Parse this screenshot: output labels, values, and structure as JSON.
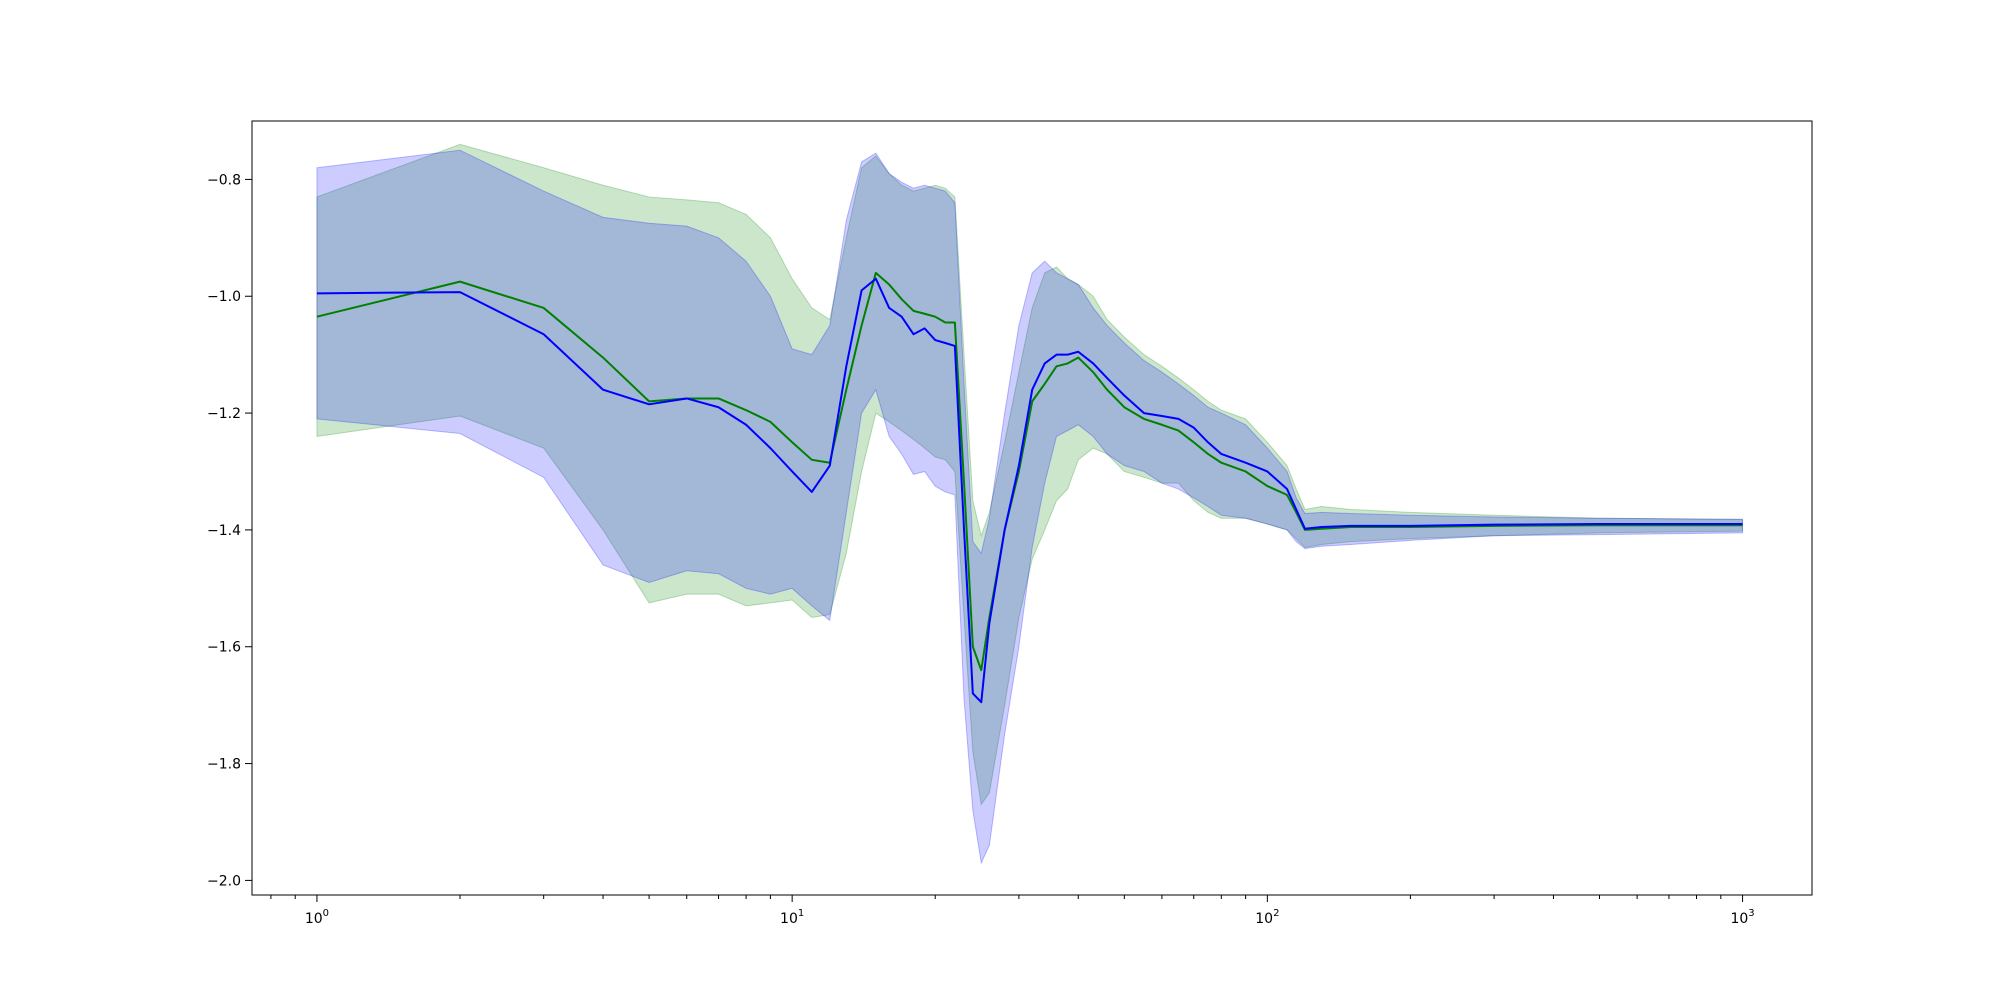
{
  "chart_data": {
    "type": "line",
    "title": "",
    "xlabel": "",
    "ylabel": "",
    "x_scale": "log",
    "xlim": [
      0.73,
      1400
    ],
    "ylim": [
      -2.025,
      -0.7
    ],
    "grid": false,
    "legend": "none",
    "x_ticks": [
      {
        "value": 1,
        "base": "10",
        "exp": "0"
      },
      {
        "value": 10,
        "base": "10",
        "exp": "1"
      },
      {
        "value": 100,
        "base": "10",
        "exp": "2"
      },
      {
        "value": 1000,
        "base": "10",
        "exp": "3"
      }
    ],
    "y_ticks": [
      {
        "value": -2.0,
        "label": "−2.0"
      },
      {
        "value": -1.8,
        "label": "−1.8"
      },
      {
        "value": -1.6,
        "label": "−1.6"
      },
      {
        "value": -1.4,
        "label": "−1.4"
      },
      {
        "value": -1.2,
        "label": "−1.2"
      },
      {
        "value": -1.0,
        "label": "−1.0"
      },
      {
        "value": -0.8,
        "label": "−0.8"
      }
    ],
    "series": [
      {
        "color": "#008000",
        "band_color": "#008000",
        "band_opacity": 0.2,
        "x": [
          1,
          2,
          3,
          4,
          5,
          6,
          7,
          8,
          9,
          10,
          11,
          12,
          13,
          14,
          15,
          16,
          17,
          18,
          19,
          20,
          21,
          22,
          23,
          24,
          25,
          26,
          28,
          30,
          32,
          34,
          36,
          38,
          40,
          43,
          46,
          50,
          55,
          60,
          65,
          70,
          75,
          80,
          90,
          100,
          110,
          115,
          120,
          130,
          150,
          200,
          300,
          500,
          1000
        ],
        "y": [
          -1.035,
          -0.975,
          -1.02,
          -1.105,
          -1.18,
          -1.175,
          -1.175,
          -1.195,
          -1.215,
          -1.25,
          -1.28,
          -1.285,
          -1.16,
          -1.05,
          -0.96,
          -0.98,
          -1.005,
          -1.025,
          -1.03,
          -1.035,
          -1.045,
          -1.045,
          -1.32,
          -1.6,
          -1.64,
          -1.55,
          -1.4,
          -1.3,
          -1.18,
          -1.15,
          -1.12,
          -1.115,
          -1.105,
          -1.13,
          -1.16,
          -1.19,
          -1.21,
          -1.22,
          -1.23,
          -1.25,
          -1.27,
          -1.285,
          -1.3,
          -1.325,
          -1.34,
          -1.37,
          -1.4,
          -1.398,
          -1.395,
          -1.395,
          -1.393,
          -1.392,
          -1.392
        ],
        "lower": [
          -1.24,
          -1.205,
          -1.26,
          -1.4,
          -1.525,
          -1.51,
          -1.51,
          -1.53,
          -1.525,
          -1.52,
          -1.55,
          -1.545,
          -1.44,
          -1.3,
          -1.2,
          -1.215,
          -1.23,
          -1.245,
          -1.26,
          -1.275,
          -1.28,
          -1.3,
          -1.55,
          -1.78,
          -1.87,
          -1.85,
          -1.7,
          -1.55,
          -1.45,
          -1.4,
          -1.35,
          -1.33,
          -1.28,
          -1.26,
          -1.27,
          -1.3,
          -1.31,
          -1.32,
          -1.32,
          -1.35,
          -1.37,
          -1.38,
          -1.38,
          -1.39,
          -1.4,
          -1.415,
          -1.43,
          -1.425,
          -1.42,
          -1.415,
          -1.41,
          -1.405,
          -1.402
        ],
        "upper": [
          -0.83,
          -0.74,
          -0.78,
          -0.81,
          -0.83,
          -0.835,
          -0.84,
          -0.86,
          -0.9,
          -0.97,
          -1.02,
          -1.04,
          -0.9,
          -0.78,
          -0.76,
          -0.79,
          -0.81,
          -0.82,
          -0.815,
          -0.81,
          -0.815,
          -0.83,
          -1.1,
          -1.35,
          -1.41,
          -1.37,
          -1.25,
          -1.13,
          -1.02,
          -0.96,
          -0.95,
          -0.97,
          -0.98,
          -1.0,
          -1.04,
          -1.07,
          -1.1,
          -1.12,
          -1.14,
          -1.16,
          -1.18,
          -1.195,
          -1.21,
          -1.25,
          -1.29,
          -1.33,
          -1.365,
          -1.36,
          -1.365,
          -1.37,
          -1.375,
          -1.38,
          -1.382
        ]
      },
      {
        "color": "#0000ff",
        "band_color": "#0000ff",
        "band_opacity": 0.2,
        "x": [
          1,
          2,
          3,
          4,
          5,
          6,
          7,
          8,
          9,
          10,
          11,
          12,
          13,
          14,
          15,
          16,
          17,
          18,
          19,
          20,
          21,
          22,
          23,
          24,
          25,
          26,
          28,
          30,
          32,
          34,
          36,
          38,
          40,
          43,
          46,
          50,
          55,
          60,
          65,
          70,
          75,
          80,
          90,
          100,
          110,
          115,
          120,
          130,
          150,
          200,
          300,
          500,
          1000
        ],
        "y": [
          -0.995,
          -0.993,
          -1.065,
          -1.16,
          -1.185,
          -1.175,
          -1.19,
          -1.22,
          -1.26,
          -1.3,
          -1.335,
          -1.29,
          -1.12,
          -0.99,
          -0.97,
          -1.02,
          -1.035,
          -1.065,
          -1.055,
          -1.075,
          -1.08,
          -1.085,
          -1.4,
          -1.68,
          -1.695,
          -1.56,
          -1.4,
          -1.29,
          -1.16,
          -1.115,
          -1.1,
          -1.1,
          -1.095,
          -1.115,
          -1.14,
          -1.17,
          -1.2,
          -1.205,
          -1.21,
          -1.225,
          -1.25,
          -1.27,
          -1.285,
          -1.3,
          -1.33,
          -1.365,
          -1.398,
          -1.395,
          -1.393,
          -1.393,
          -1.391,
          -1.39,
          -1.39
        ],
        "lower": [
          -1.21,
          -1.235,
          -1.31,
          -1.46,
          -1.49,
          -1.47,
          -1.475,
          -1.5,
          -1.51,
          -1.5,
          -1.53,
          -1.555,
          -1.37,
          -1.2,
          -1.16,
          -1.24,
          -1.27,
          -1.305,
          -1.3,
          -1.325,
          -1.335,
          -1.34,
          -1.69,
          -1.88,
          -1.97,
          -1.94,
          -1.75,
          -1.6,
          -1.43,
          -1.32,
          -1.24,
          -1.23,
          -1.22,
          -1.24,
          -1.27,
          -1.29,
          -1.3,
          -1.32,
          -1.33,
          -1.345,
          -1.36,
          -1.375,
          -1.38,
          -1.39,
          -1.4,
          -1.42,
          -1.432,
          -1.428,
          -1.425,
          -1.418,
          -1.41,
          -1.408,
          -1.405
        ],
        "upper": [
          -0.78,
          -0.75,
          -0.82,
          -0.865,
          -0.875,
          -0.88,
          -0.9,
          -0.94,
          -1.0,
          -1.09,
          -1.1,
          -1.05,
          -0.87,
          -0.77,
          -0.755,
          -0.79,
          -0.805,
          -0.815,
          -0.81,
          -0.815,
          -0.82,
          -0.84,
          -1.15,
          -1.42,
          -1.44,
          -1.38,
          -1.2,
          -1.05,
          -0.96,
          -0.94,
          -0.96,
          -0.97,
          -0.98,
          -1.02,
          -1.05,
          -1.08,
          -1.11,
          -1.13,
          -1.15,
          -1.17,
          -1.19,
          -1.2,
          -1.22,
          -1.26,
          -1.3,
          -1.345,
          -1.372,
          -1.37,
          -1.372,
          -1.375,
          -1.378,
          -1.38,
          -1.382
        ]
      }
    ]
  }
}
